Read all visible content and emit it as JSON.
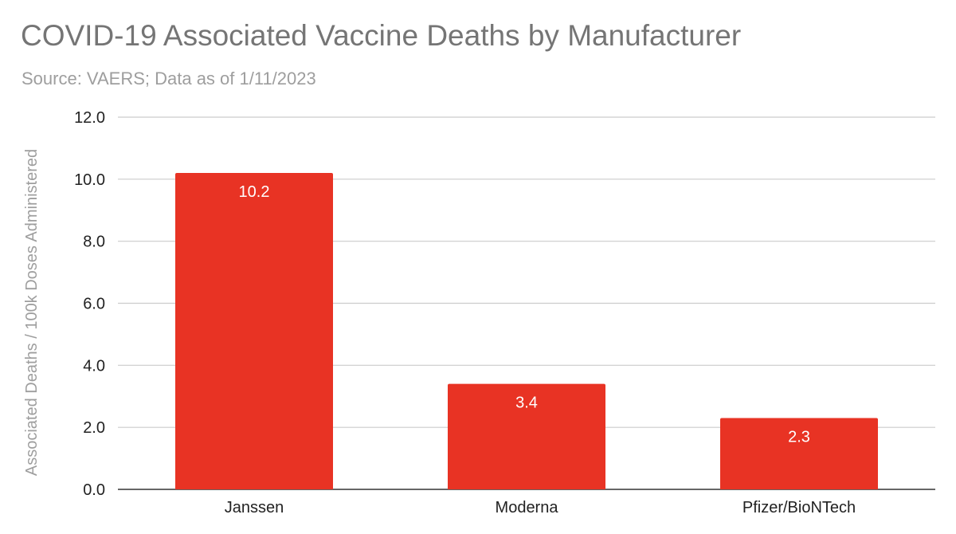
{
  "chart_data": {
    "type": "bar",
    "title": "COVID-19 Associated Vaccine Deaths by Manufacturer",
    "subtitle": "Source: VAERS; Data as of 1/11/2023",
    "xlabel": "",
    "ylabel": "Associated Deaths / 100k Doses Administered",
    "categories": [
      "Janssen",
      "Moderna",
      "Pfizer/BioNTech"
    ],
    "values": [
      10.2,
      3.4,
      2.3
    ],
    "data_labels": [
      "10.2",
      "3.4",
      "2.3"
    ],
    "ylim": [
      0,
      12
    ],
    "yticks": [
      0,
      2,
      4,
      6,
      8,
      10,
      12
    ],
    "ytick_labels": [
      "0.0",
      "2.0",
      "4.0",
      "6.0",
      "8.0",
      "10.0",
      "12.0"
    ],
    "grid": true,
    "legend": "none",
    "colors": {
      "bar": "#e83324",
      "grid": "#cccccc",
      "axis": "#333333",
      "title": "#757575",
      "subtitle": "#9e9e9e"
    }
  }
}
